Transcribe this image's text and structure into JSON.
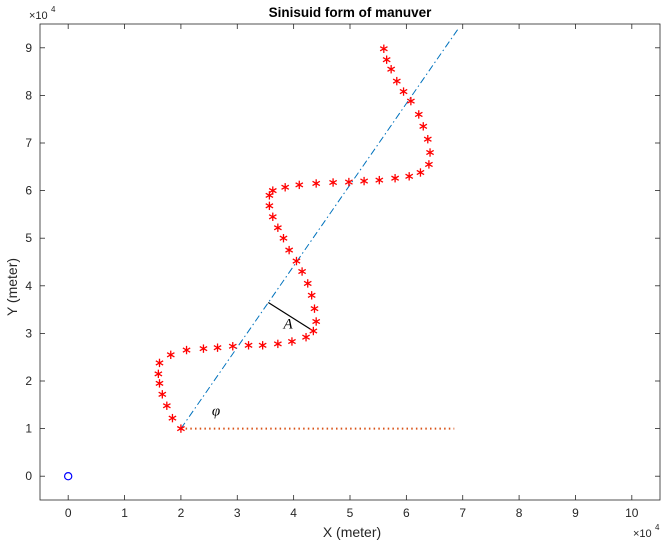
{
  "chart_data": {
    "type": "scatter",
    "title": "Sinisuid form of manuver",
    "xlabel": "X (meter)",
    "ylabel": "Y (meter)",
    "x_exponent": "×10",
    "y_exponent": "×10",
    "exponent_power": "4",
    "xlim": [
      -0.5,
      10.5
    ],
    "ylim": [
      -0.5,
      9.5
    ],
    "x_ticks": [
      0,
      1,
      2,
      3,
      4,
      5,
      6,
      7,
      8,
      9,
      10
    ],
    "y_ticks": [
      0,
      1,
      2,
      3,
      4,
      5,
      6,
      7,
      8,
      9
    ],
    "units_note": "axis values in units of 10^4 meters",
    "grid": false,
    "colors": {
      "trajectory": "#ff0000",
      "baseline": "#d95319",
      "path_axis": "#0072bd",
      "origin": "#0000ff",
      "amplitude": "#000000"
    },
    "series": [
      {
        "marker": "asterisk",
        "x": [
          2.0,
          1.85,
          1.75,
          1.67,
          1.62,
          1.6,
          1.62,
          1.82,
          2.1,
          2.4,
          2.65,
          2.92,
          3.2,
          3.45,
          3.72,
          3.97,
          4.22,
          4.35,
          4.4,
          4.37,
          4.32,
          4.25,
          4.15,
          4.05,
          3.92,
          3.82,
          3.72,
          3.63,
          3.57,
          3.57,
          3.63,
          3.85,
          4.1,
          4.4,
          4.7,
          4.98,
          5.25,
          5.52,
          5.8,
          6.05,
          6.25,
          6.4,
          6.42,
          6.38,
          6.3,
          6.22,
          6.08,
          5.95,
          5.83,
          5.73,
          5.65,
          5.6
        ],
        "y": [
          1.0,
          1.22,
          1.48,
          1.72,
          1.95,
          2.15,
          2.38,
          2.55,
          2.65,
          2.68,
          2.7,
          2.73,
          2.75,
          2.75,
          2.78,
          2.83,
          2.92,
          3.05,
          3.25,
          3.52,
          3.8,
          4.05,
          4.3,
          4.52,
          4.75,
          5.0,
          5.22,
          5.45,
          5.68,
          5.9,
          6.0,
          6.07,
          6.12,
          6.15,
          6.17,
          6.18,
          6.2,
          6.22,
          6.26,
          6.3,
          6.38,
          6.55,
          6.8,
          7.08,
          7.35,
          7.6,
          7.88,
          8.08,
          8.3,
          8.55,
          8.75,
          8.98
        ]
      },
      {
        "marker": "dotted-line",
        "x": [
          2.0,
          6.85
        ],
        "y": [
          1.0,
          1.0
        ]
      },
      {
        "marker": "dash-dot-line",
        "x": [
          2.0,
          6.92
        ],
        "y": [
          1.0,
          9.4
        ]
      },
      {
        "marker": "circle",
        "x": [
          0
        ],
        "y": [
          0
        ]
      },
      {
        "marker": "solid-segment",
        "x": [
          3.55,
          4.35
        ],
        "y": [
          3.65,
          3.05
        ]
      }
    ],
    "annotations": [
      {
        "text": "A",
        "x": 3.82,
        "y": 3.1
      },
      {
        "text": "φ",
        "x": 2.55,
        "y": 1.28
      }
    ]
  }
}
